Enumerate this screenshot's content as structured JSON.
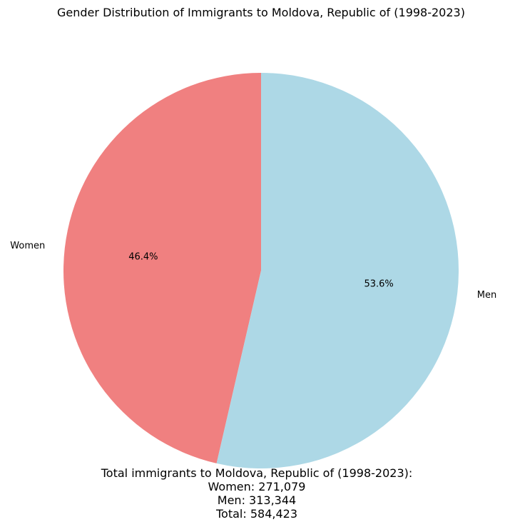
{
  "chart_data": {
    "type": "pie",
    "title": "Gender Distribution of Immigrants to Moldova, Republic of (1998-2023)",
    "slices": [
      {
        "label": "Women",
        "value": 271079,
        "percent_label": "46.4%",
        "color": "#f08080"
      },
      {
        "label": "Men",
        "value": 313344,
        "percent_label": "53.6%",
        "color": "#add8e6"
      }
    ],
    "start_angle_deg": 90,
    "direction": "counterclockwise"
  },
  "summary": {
    "heading": "Total immigrants to Moldova, Republic of (1998-2023):",
    "women": "Women: 271,079",
    "men": "Men: 313,344",
    "total": "Total: 584,423"
  }
}
